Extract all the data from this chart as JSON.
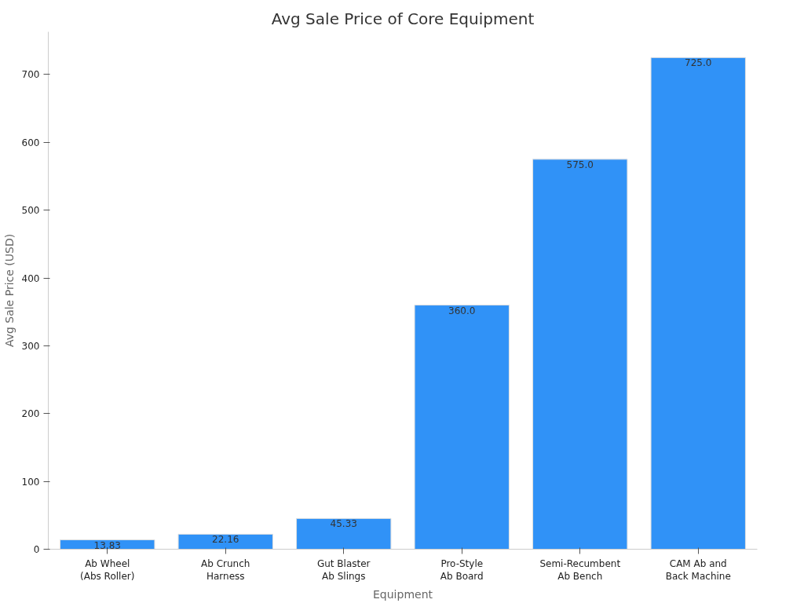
{
  "chart_data": {
    "type": "bar",
    "title": "Avg Sale Price of Core Equipment",
    "xlabel": "Equipment",
    "ylabel": "Avg Sale Price (USD)",
    "categories": [
      "Ab Wheel\n(Abs Roller)",
      "Ab Crunch\nHarness",
      "Gut Blaster\nAb Slings",
      "Pro-Style\nAb Board",
      "Semi-Recumbent\nAb Bench",
      "CAM Ab and\nBack Machine"
    ],
    "values": [
      13.83,
      22.16,
      45.33,
      360.0,
      575.0,
      725.0
    ],
    "value_labels": [
      "13.83",
      "22.16",
      "45.33",
      "360.0",
      "575.0",
      "725.0"
    ],
    "color": "#3092f7",
    "ylim": [
      0,
      763
    ],
    "yticks": [
      0,
      100,
      200,
      300,
      400,
      500,
      600,
      700
    ],
    "grid": false
  }
}
